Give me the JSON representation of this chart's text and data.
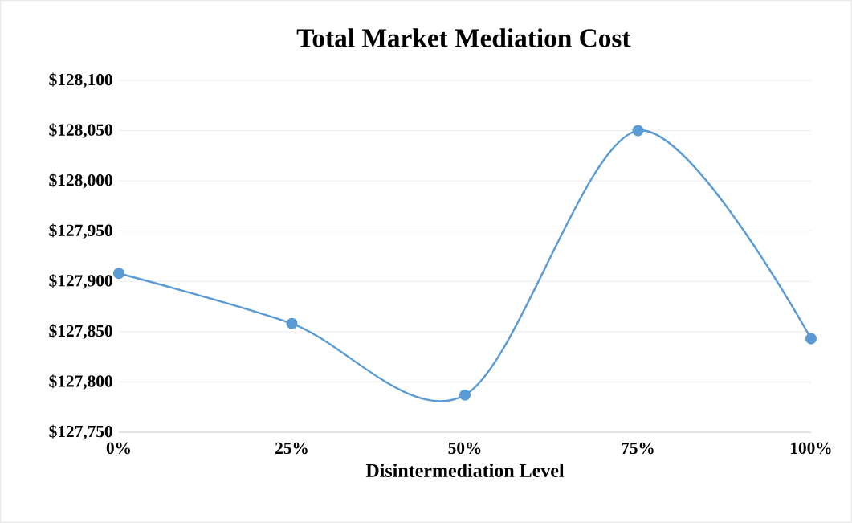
{
  "chart_data": {
    "type": "line",
    "title": "Total Market Mediation Cost",
    "xlabel": "Disintermediation  Level",
    "categories": [
      "0%",
      "25%",
      "50%",
      "75%",
      "100%"
    ],
    "series": [
      {
        "color": "#5b9bd5",
        "values": [
          127908,
          127858,
          127787,
          128050,
          127843
        ]
      }
    ],
    "ylim": [
      127750,
      128100
    ],
    "yticks": [
      {
        "value": 127750,
        "label": "$127,750"
      },
      {
        "value": 127800,
        "label": "$127,800"
      },
      {
        "value": 127850,
        "label": "$127,850"
      },
      {
        "value": 127900,
        "label": "$127,900"
      },
      {
        "value": 127950,
        "label": "$127,950"
      },
      {
        "value": 128000,
        "label": "$128,000"
      },
      {
        "value": 128050,
        "label": "$128,050"
      },
      {
        "value": 128100,
        "label": "$128,100"
      }
    ],
    "grid": "y",
    "marker": "circle",
    "line_style": "solid"
  }
}
